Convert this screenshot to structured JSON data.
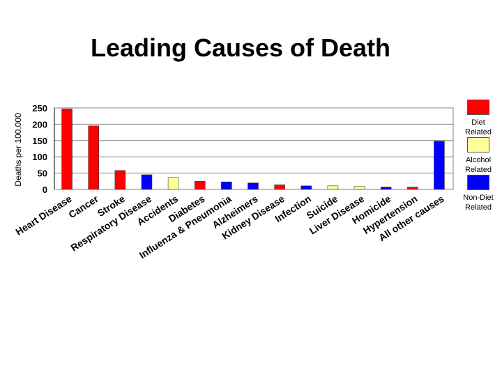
{
  "chart_data": {
    "type": "bar",
    "title": "Leading Causes of Death",
    "ylabel": "Deaths per 100,000",
    "xlabel": "",
    "ylim": [
      0,
      250
    ],
    "yticks": [
      0,
      50,
      100,
      150,
      200,
      250
    ],
    "grid": true,
    "legend_position": "right",
    "categories": [
      "Heart Disease",
      "Cancer",
      "Stroke",
      "Respiratory Disease",
      "Accidents",
      "Diabetes",
      "Influenza & Pneumonia",
      "Alzheimers",
      "Kidney Disease",
      "Infection",
      "Suicide",
      "Liver Disease",
      "Homicide",
      "Hypertension",
      "All other causes"
    ],
    "values": [
      247,
      195,
      58,
      45,
      37,
      25,
      23,
      20,
      14,
      11,
      11,
      10,
      7,
      7,
      148
    ],
    "groups": [
      "diet",
      "diet",
      "diet",
      "non-diet",
      "alcohol",
      "diet",
      "non-diet",
      "non-diet",
      "diet",
      "non-diet",
      "alcohol",
      "alcohol",
      "non-diet",
      "diet",
      "non-diet"
    ],
    "legend": [
      {
        "key": "diet",
        "label": "Diet Related",
        "color": "#ff0000"
      },
      {
        "key": "alcohol",
        "label": "Alcohol Related",
        "color": "#ffff99"
      },
      {
        "key": "non-diet",
        "label": "Non-Diet Related",
        "color": "#0000ff"
      }
    ]
  }
}
